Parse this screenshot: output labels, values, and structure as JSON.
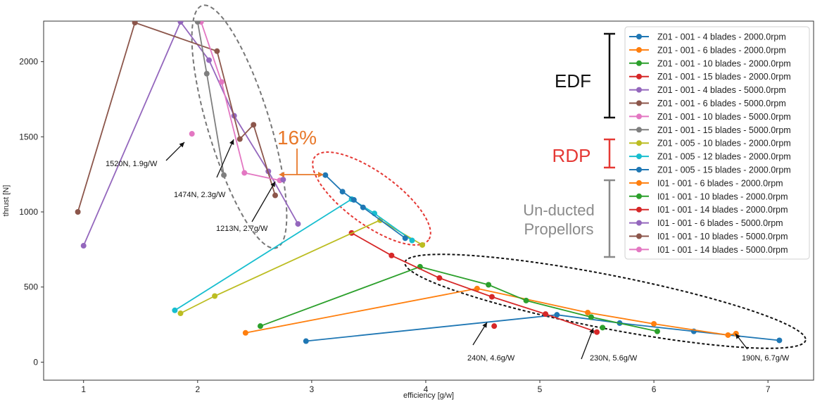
{
  "chart_data": {
    "type": "line",
    "title": "",
    "xlabel": "efficiency [g/w]",
    "ylabel": "thrust [N]",
    "xlim": [
      0.65,
      7.4
    ],
    "ylim": [
      -120,
      2270
    ],
    "xticks": [
      1,
      2,
      3,
      4,
      5,
      6,
      7
    ],
    "yticks": [
      0,
      500,
      1000,
      1500,
      2000
    ],
    "grid": false,
    "legend_position": "top-right",
    "series": [
      {
        "name": "Z01 - 001 - 4 blades  -  2000.0rpm",
        "color": "#1f77b4",
        "x": [
          2.95,
          5.15,
          5.7,
          6.35,
          7.1
        ],
        "y": [
          140,
          315,
          260,
          205,
          145
        ]
      },
      {
        "name": "Z01 - 001 - 6 blades  -  2000.0rpm",
        "color": "#ff7f0e",
        "x": [
          2.42,
          4.45,
          5.42,
          6.0,
          6.65,
          6.72
        ],
        "y": [
          195,
          490,
          330,
          255,
          180,
          190
        ]
      },
      {
        "name": "Z01 - 001 - 10 blades  -  2000.0rpm",
        "color": "#2ca02c",
        "x": [
          2.55,
          3.95,
          4.55,
          4.88,
          5.45,
          6.03
        ],
        "y": [
          240,
          635,
          515,
          410,
          300,
          205
        ]
      },
      {
        "name": "Z01 - 001 - 15 blades  -  2000.0rpm",
        "color": "#d62728",
        "x": [
          3.35,
          3.7,
          4.12,
          4.58,
          5.05,
          5.5
        ],
        "y": [
          860,
          710,
          560,
          435,
          320,
          200
        ]
      },
      {
        "name": "Z01 - 001 - 4 blades  -  5000.0rpm",
        "color": "#9467bd",
        "x": [
          1.0,
          1.85,
          2.1,
          2.32,
          2.62,
          2.88
        ],
        "y": [
          775,
          2265,
          2010,
          1640,
          1270,
          920
        ]
      },
      {
        "name": "Z01 - 001 - 6 blades  -  5000.0rpm",
        "color": "#8c564b",
        "x": [
          0.95,
          1.45,
          2.17,
          2.37,
          2.49,
          2.68
        ],
        "y": [
          1000,
          2260,
          2070,
          1485,
          1580,
          1110
        ]
      },
      {
        "name": "Z01 - 001 - 10 blades  -  5000.0rpm",
        "color": "#e377c2",
        "x": [
          2.03,
          2.21,
          2.41,
          2.72
        ],
        "y": [
          2265,
          1865,
          1260,
          1210
        ]
      },
      {
        "name": "Z01 - 001 - 15 blades  -  5000.0rpm",
        "color": "#7f7f7f",
        "x": [
          2.0,
          2.08,
          2.23
        ],
        "y": [
          2265,
          1920,
          1245
        ]
      },
      {
        "name": "Z01 - 005 - 10 blades  -  2000.0rpm",
        "color": "#bcbd22",
        "x": [
          1.85,
          2.15,
          3.6,
          3.97
        ],
        "y": [
          325,
          440,
          945,
          780
        ]
      },
      {
        "name": "Z01 - 005 - 12 blades  -  2000.0rpm",
        "color": "#17becf",
        "x": [
          1.8,
          3.35,
          3.55,
          3.88
        ],
        "y": [
          345,
          1085,
          990,
          810
        ]
      },
      {
        "name": "Z01 - 005 - 15 blades  -  2000.0rpm",
        "color": "#1f77b4",
        "x": [
          3.12,
          3.27,
          3.37,
          3.45,
          3.82
        ],
        "y": [
          1245,
          1135,
          1080,
          1030,
          825
        ]
      },
      {
        "name": "I01 - 001 - 6 blades  -  2000.0rpm",
        "color": "#ff7f0e",
        "x": [],
        "y": []
      },
      {
        "name": "I01 - 001 - 10 blades  -  2000.0rpm",
        "color": "#2ca02c",
        "x": [],
        "y": []
      },
      {
        "name": "I01 - 001 - 14 blades  -  2000.0rpm",
        "color": "#d62728",
        "x": [
          4.6
        ],
        "y": [
          240
        ]
      },
      {
        "name": "I01 - 001 - 6 blades  -  5000.0rpm",
        "color": "#9467bd",
        "x": [],
        "y": []
      },
      {
        "name": "I01 - 001 - 10 blades  -  5000.0rpm",
        "color": "#8c564b",
        "x": [],
        "y": []
      },
      {
        "name": "I01 - 001 - 14 blades  -  5000.0rpm",
        "color": "#e377c2",
        "x": [
          1.95
        ],
        "y": [
          1520
        ]
      }
    ],
    "extra_points": [
      {
        "x": 5.55,
        "y": 230,
        "color": "#2ca02c"
      },
      {
        "x": 2.75,
        "y": 1215,
        "color": "#9467bd"
      }
    ],
    "annotations": [
      {
        "text": "1520N, 1.9g/W",
        "x": 1.95,
        "y": 1520
      },
      {
        "text": "1474N, 2.3g/W",
        "x": 2.35,
        "y": 1474
      },
      {
        "text": "1213N, 2.7g/W",
        "x": 2.7,
        "y": 1213
      },
      {
        "text": "240N, 4.6g/W",
        "x": 4.6,
        "y": 240
      },
      {
        "text": "230N, 5.6g/W",
        "x": 5.6,
        "y": 230
      },
      {
        "text": "190N, 6.7g/W",
        "x": 6.7,
        "y": 190
      }
    ],
    "percent_label": "16%",
    "groups": [
      {
        "label": "EDF",
        "color": "#111111"
      },
      {
        "label": "RDP",
        "color": "#e53935"
      },
      {
        "label": "Un-ducted Propellors",
        "color": "#8a8a8a"
      }
    ]
  }
}
